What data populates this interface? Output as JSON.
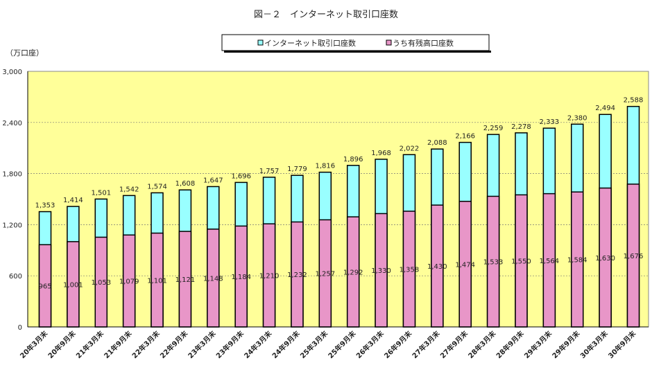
{
  "chart_data": {
    "type": "bar",
    "stacked": "overlay",
    "title": "図－２　インターネット取引口座数",
    "ylabel": "（万口座）",
    "ylim": [
      0,
      3000
    ],
    "yticks": [
      "0",
      "600",
      "1,200",
      "1,800",
      "2,400",
      "3,000"
    ],
    "ytick_values": [
      0,
      600,
      1200,
      1800,
      2400,
      3000
    ],
    "grid": true,
    "legend_position": "top",
    "categories": [
      "20年3月末",
      "20年9月末",
      "21年3月末",
      "21年9月末",
      "22年3月末",
      "22年9月末",
      "23年3月末",
      "23年9月末",
      "24年3月末",
      "24年9月末",
      "25年3月末",
      "25年9月末",
      "26年3月末",
      "26年9月末",
      "27年3月末",
      "27年9月末",
      "28年3月末",
      "28年9月末",
      "29年3月末",
      "29年9月末",
      "30年3月末",
      "30年9月末"
    ],
    "series": [
      {
        "name": "インターネット取引口座数",
        "color": "#99FFFF",
        "values": [
          1353,
          1414,
          1501,
          1542,
          1574,
          1608,
          1647,
          1696,
          1757,
          1779,
          1816,
          1896,
          1968,
          2022,
          2088,
          2166,
          2259,
          2278,
          2333,
          2380,
          2494,
          2588
        ],
        "labels": [
          "1,353",
          "1,414",
          "1,501",
          "1,542",
          "1,574",
          "1,608",
          "1,647",
          "1,696",
          "1,757",
          "1,779",
          "1,816",
          "1,896",
          "1,968",
          "2,022",
          "2,088",
          "2,166",
          "2,259",
          "2,278",
          "2,333",
          "2,380",
          "2,494",
          "2,588"
        ]
      },
      {
        "name": "うち有残高口座数",
        "color": "#E896C8",
        "values": [
          965,
          1001,
          1053,
          1079,
          1101,
          1121,
          1148,
          1184,
          1210,
          1232,
          1257,
          1292,
          1330,
          1358,
          1430,
          1474,
          1533,
          1550,
          1564,
          1584,
          1630,
          1676
        ],
        "labels": [
          "965",
          "1,001",
          "1,053",
          "1,079",
          "1,101",
          "1,121",
          "1,148",
          "1,184",
          "1,210",
          "1,232",
          "1,257",
          "1,292",
          "1,330",
          "1,358",
          "1,430",
          "1,474",
          "1,533",
          "1,550",
          "1,564",
          "1,584",
          "1,630",
          "1,676"
        ]
      }
    ],
    "plot_background": "#FFFF99"
  }
}
